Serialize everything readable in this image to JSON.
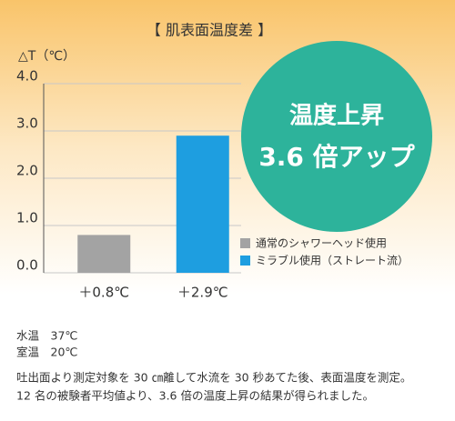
{
  "chart_data": {
    "type": "bar",
    "title": "【 肌表面温度差 】",
    "y_label": "△T（℃）",
    "categories": [
      "＋0.8℃",
      "＋2.9℃"
    ],
    "series": [
      {
        "name": "通常のシャワーヘッド使用",
        "color": "#a3a3a3",
        "values": [
          0.8,
          null
        ]
      },
      {
        "name": "ミラブル使用（ストレート流）",
        "color": "#1e9ee0",
        "values": [
          null,
          2.9
        ]
      }
    ],
    "ylim": [
      0,
      4
    ],
    "yticks": [
      {
        "value": 0,
        "label": "0.0"
      },
      {
        "value": 1,
        "label": "1.0"
      },
      {
        "value": 2,
        "label": "2.0"
      },
      {
        "value": 3,
        "label": "3.0"
      },
      {
        "value": 4,
        "label": "4.0"
      }
    ],
    "grid": true,
    "badge": [
      "温度上昇",
      "3.6 倍アップ"
    ],
    "badge_color": "#2db39b",
    "notes": [
      "水温　37℃",
      "室温　20℃",
      "吐出面より測定対象を 30 ㎝離して水流を 30 秒あてた後、表面温度を測定。",
      "12 名の被験者平均値より、3.6 倍の温度上昇の結果が得られました。"
    ]
  }
}
